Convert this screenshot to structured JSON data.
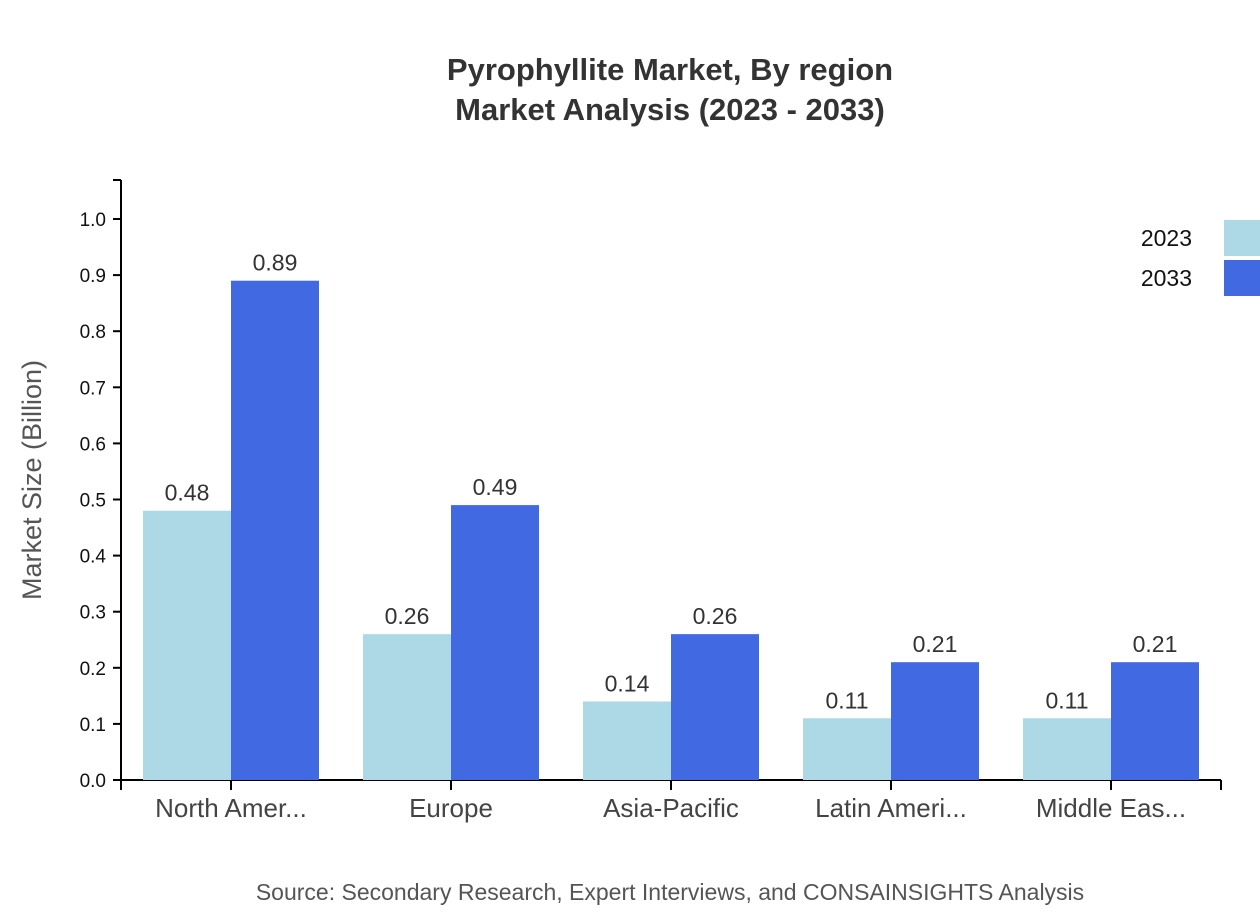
{
  "chart_data": {
    "type": "bar",
    "title": "Pyrophyllite Market, By region",
    "subtitle": "Market Analysis (2023 - 2033)",
    "xlabel": "",
    "ylabel": "Market Size (Billion)",
    "ylim": [
      0,
      1.0
    ],
    "yticks": [
      "0.0",
      "0.1",
      "0.2",
      "0.3",
      "0.4",
      "0.5",
      "0.6",
      "0.7",
      "0.8",
      "0.9",
      "1.0"
    ],
    "categories": [
      "North Amer...",
      "Europe",
      "Asia-Pacific",
      "Latin Ameri...",
      "Middle Eas..."
    ],
    "series": [
      {
        "name": "2023",
        "color": "#add8e6",
        "values": [
          0.48,
          0.26,
          0.14,
          0.11,
          0.11
        ],
        "labels": [
          "0.48",
          "0.26",
          "0.14",
          "0.11",
          "0.11"
        ]
      },
      {
        "name": "2033",
        "color": "#4169e1",
        "values": [
          0.89,
          0.49,
          0.26,
          0.21,
          0.21
        ],
        "labels": [
          "0.89",
          "0.49",
          "0.26",
          "0.21",
          "0.21"
        ]
      }
    ],
    "legend_position": "top-right",
    "grid": false,
    "source": "Source: Secondary Research, Expert Interviews, and CONSAINSIGHTS Analysis"
  }
}
